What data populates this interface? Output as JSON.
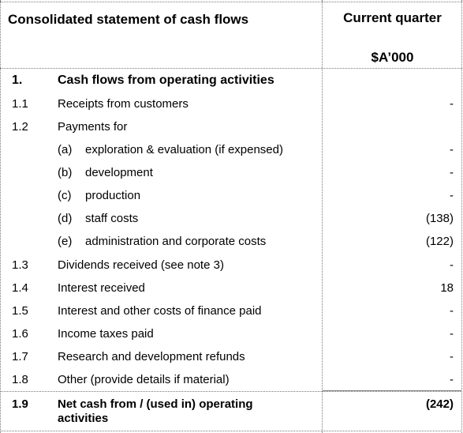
{
  "header": {
    "title": "Consolidated statement of cash flows",
    "column_label": "Current quarter",
    "column_unit": "$A’000"
  },
  "section": {
    "number": "1.",
    "title": "Cash flows from operating activities"
  },
  "rows": [
    {
      "number": "1.1",
      "label": "Receipts from customers",
      "value": "-"
    },
    {
      "number": "1.2",
      "label": "Payments for",
      "value": ""
    },
    {
      "sub": "(a)",
      "label": "exploration & evaluation (if expensed)",
      "value": "-"
    },
    {
      "sub": "(b)",
      "label": "development",
      "value": "-"
    },
    {
      "sub": "(c)",
      "label": "production",
      "value": "-"
    },
    {
      "sub": "(d)",
      "label": "staff costs",
      "value": "(138)"
    },
    {
      "sub": "(e)",
      "label": "administration and corporate costs",
      "value": "(122)"
    },
    {
      "number": "1.3",
      "label": "Dividends received (see note 3)",
      "value": "-"
    },
    {
      "number": "1.4",
      "label": "Interest received",
      "value": "18"
    },
    {
      "number": "1.5",
      "label": "Interest and other costs of finance paid",
      "value": "-"
    },
    {
      "number": "1.6",
      "label": "Income taxes paid",
      "value": "-"
    },
    {
      "number": "1.7",
      "label": "Research and development refunds",
      "value": "-"
    },
    {
      "number": "1.8",
      "label": "Other (provide details if material)",
      "value": "-"
    }
  ],
  "total": {
    "number": "1.9",
    "label": "Net cash from / (used in) operating activities",
    "value": "(242)"
  }
}
